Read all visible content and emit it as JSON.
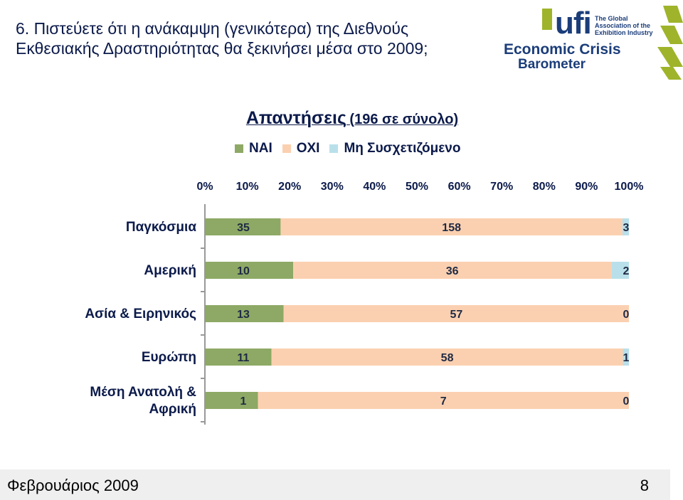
{
  "slide": {
    "title": "6. Πιστεύετε ότι η ανάκαμψη (γενικότερα) της Διεθνούς Εκθεσιακής Δραστηριότητας θα ξεκινήσει μέσα στο 2009;",
    "footer_date": "Φεβρουάριος 2009",
    "page_number": "8"
  },
  "logo": {
    "ufi": "ufi",
    "association_lines": "The Global\nAssociation of the\nExhibition Industry",
    "line1": "Economic Crisis",
    "line2": "Barometer",
    "brand_color": "#1b3d7a",
    "stripe_color": "#9fb42a"
  },
  "chart_data": {
    "type": "bar",
    "orientation": "horizontal",
    "stacked": "percent",
    "title_main": "Απαντήσεις",
    "title_sub": "(196 σε σύνολο)",
    "categories": [
      "Παγκόσμια",
      "Αμερική",
      "Ασία & Ειρηνικός",
      "Ευρώπη",
      "Μέση Ανατολή & Αφρική"
    ],
    "series": [
      {
        "name": "ΝΑΙ",
        "color": "#8ea965",
        "values": [
          35,
          10,
          13,
          11,
          1
        ]
      },
      {
        "name": "ΟΧΙ",
        "color": "#fbd0b0",
        "values": [
          158,
          36,
          57,
          58,
          7
        ]
      },
      {
        "name": "Μη Συσχετιζόμενο",
        "color": "#b9e0ea",
        "values": [
          3,
          2,
          0,
          1,
          0
        ]
      }
    ],
    "x_ticks": [
      "0%",
      "10%",
      "20%",
      "30%",
      "40%",
      "50%",
      "60%",
      "70%",
      "80%",
      "90%",
      "100%"
    ],
    "xlim": [
      0,
      100
    ],
    "x_axis_position": "top",
    "legend_position": "top",
    "grid": false
  }
}
